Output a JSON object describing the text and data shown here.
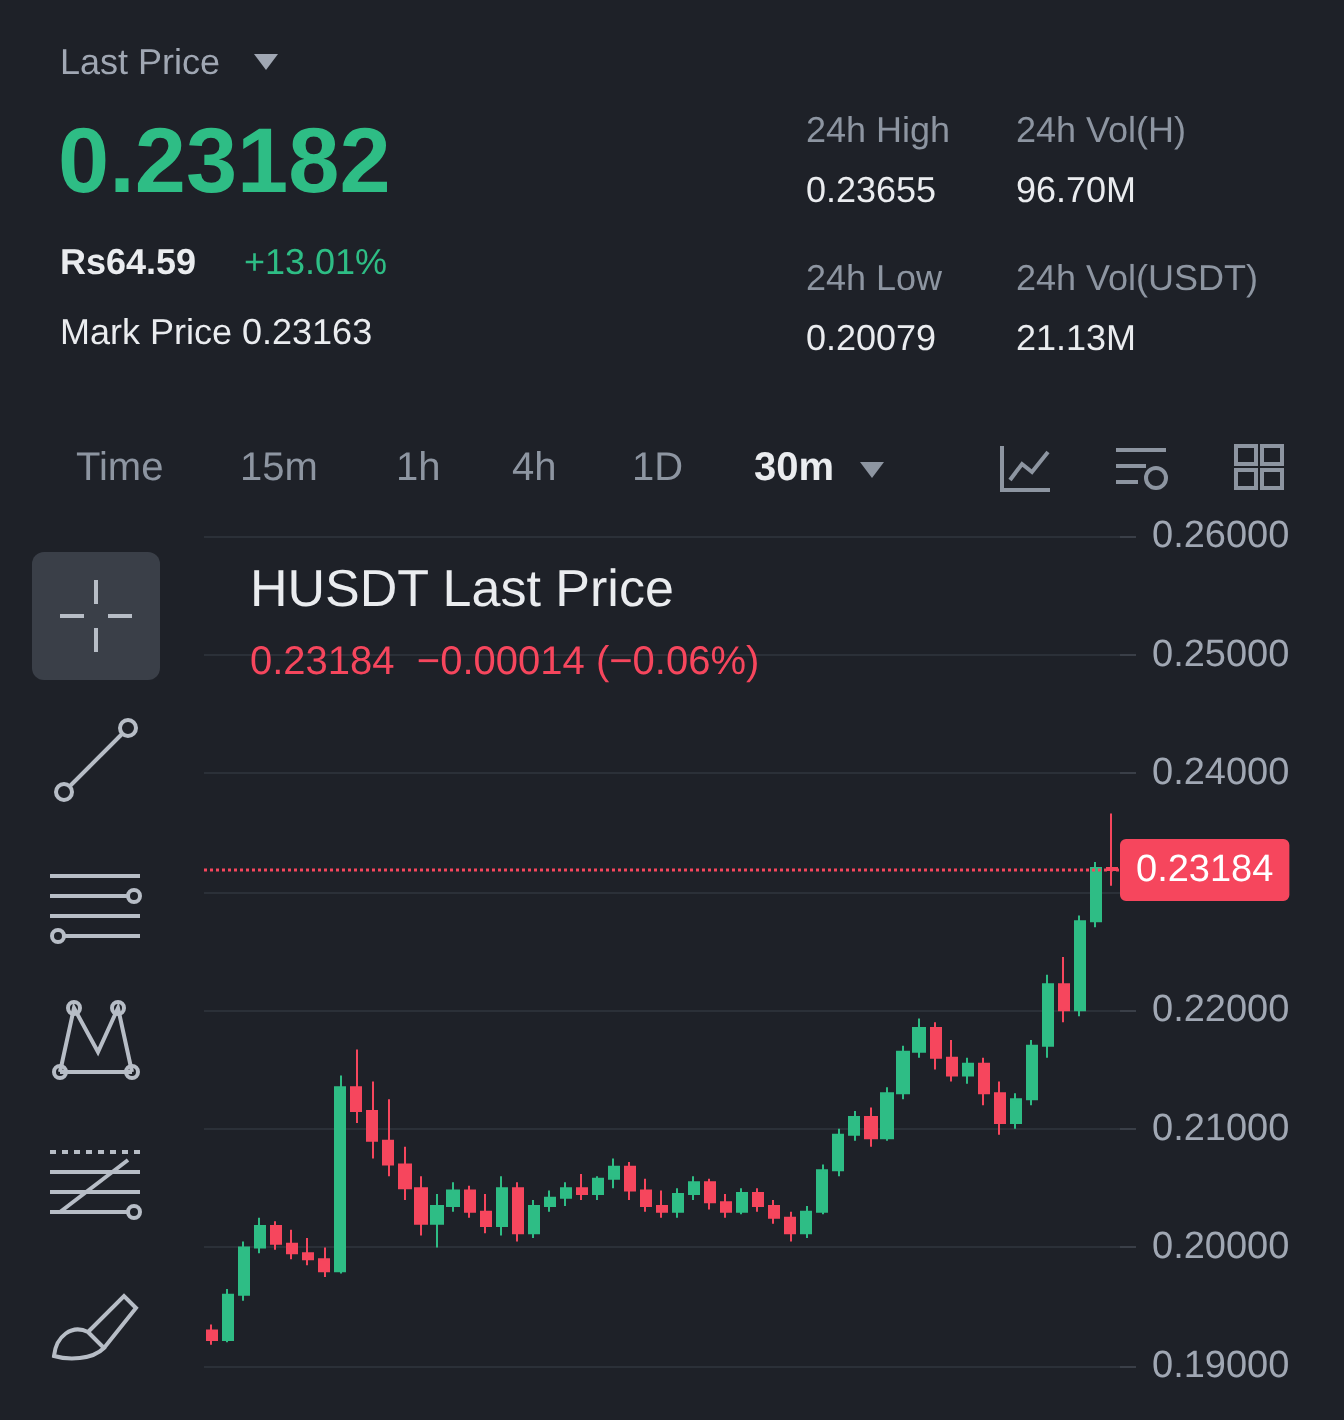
{
  "chart_data": [
    {
      "type": "other",
      "title": "Last Price",
      "annotations": [
        "0.23182",
        "Rs64.59",
        "+13.01%",
        "Mark Price 0.23163",
        "24h High",
        "0.23655",
        "24h Vol(H)",
        "96.70M",
        "24h Low",
        "0.20079",
        "24h Vol(USDT)",
        "21.13M",
        "Time",
        "15m",
        "1h",
        "4h",
        "1D",
        "30m"
      ]
    },
    {
      "type": "candlestick",
      "title": "HUSDT Last Price",
      "subtitle": "0.23184  −0.00014 (−0.06%)",
      "categories": [
        null,
        null,
        null,
        null,
        null,
        null,
        null,
        null,
        null,
        null,
        null,
        null,
        null,
        null,
        null,
        null,
        null,
        null,
        null,
        null,
        null,
        null,
        null,
        null,
        null,
        null,
        null,
        null,
        null,
        null,
        null,
        null,
        null,
        null,
        null,
        null,
        null,
        null,
        null,
        null,
        null,
        null,
        null,
        null,
        null,
        null,
        null,
        null,
        null,
        null,
        null,
        null,
        null,
        null,
        null,
        null,
        null
      ],
      "ohlc": [
        [
          0.193,
          0.1935,
          0.1918,
          0.1922
        ],
        [
          0.1922,
          0.1965,
          0.192,
          0.196
        ],
        [
          0.196,
          0.2005,
          0.1955,
          0.2
        ],
        [
          0.2,
          0.2025,
          0.1995,
          0.2018
        ],
        [
          0.2018,
          0.2022,
          0.1998,
          0.2003
        ],
        [
          0.2003,
          0.2015,
          0.199,
          0.1995
        ],
        [
          0.1995,
          0.2008,
          0.1985,
          0.199
        ],
        [
          0.199,
          0.2,
          0.1975,
          0.198
        ],
        [
          0.198,
          0.2145,
          0.1978,
          0.2135
        ],
        [
          0.2135,
          0.2167,
          0.2105,
          0.2115
        ],
        [
          0.2115,
          0.214,
          0.2075,
          0.209
        ],
        [
          0.209,
          0.2125,
          0.206,
          0.207
        ],
        [
          0.207,
          0.2085,
          0.204,
          0.205
        ],
        [
          0.205,
          0.206,
          0.201,
          0.202
        ],
        [
          0.202,
          0.2045,
          0.2,
          0.2035
        ],
        [
          0.2035,
          0.2055,
          0.203,
          0.2048
        ],
        [
          0.2048,
          0.2052,
          0.2025,
          0.203
        ],
        [
          0.203,
          0.2045,
          0.2012,
          0.2018
        ],
        [
          0.2018,
          0.206,
          0.201,
          0.205
        ],
        [
          0.205,
          0.2055,
          0.2005,
          0.2012
        ],
        [
          0.2012,
          0.204,
          0.2008,
          0.2035
        ],
        [
          0.2035,
          0.2048,
          0.203,
          0.2042
        ],
        [
          0.2042,
          0.2055,
          0.2035,
          0.205
        ],
        [
          0.205,
          0.2062,
          0.204,
          0.2045
        ],
        [
          0.2045,
          0.206,
          0.204,
          0.2058
        ],
        [
          0.2058,
          0.2075,
          0.205,
          0.2068
        ],
        [
          0.2068,
          0.2072,
          0.204,
          0.2048
        ],
        [
          0.2048,
          0.2058,
          0.203,
          0.2035
        ],
        [
          0.2035,
          0.2048,
          0.2025,
          0.203
        ],
        [
          0.203,
          0.205,
          0.2025,
          0.2045
        ],
        [
          0.2045,
          0.206,
          0.204,
          0.2055
        ],
        [
          0.2055,
          0.2058,
          0.2032,
          0.2038
        ],
        [
          0.2038,
          0.2045,
          0.2025,
          0.203
        ],
        [
          0.203,
          0.205,
          0.2028,
          0.2046
        ],
        [
          0.2046,
          0.205,
          0.203,
          0.2035
        ],
        [
          0.2035,
          0.204,
          0.202,
          0.2025
        ],
        [
          0.2025,
          0.203,
          0.2005,
          0.2012
        ],
        [
          0.2012,
          0.2035,
          0.2008,
          0.203
        ],
        [
          0.203,
          0.207,
          0.2028,
          0.2065
        ],
        [
          0.2065,
          0.21,
          0.206,
          0.2095
        ],
        [
          0.2095,
          0.2115,
          0.209,
          0.211
        ],
        [
          0.211,
          0.2118,
          0.2085,
          0.2092
        ],
        [
          0.2092,
          0.2135,
          0.209,
          0.213
        ],
        [
          0.213,
          0.217,
          0.2125,
          0.2165
        ],
        [
          0.2165,
          0.2193,
          0.216,
          0.2185
        ],
        [
          0.2185,
          0.219,
          0.215,
          0.216
        ],
        [
          0.216,
          0.2175,
          0.214,
          0.2145
        ],
        [
          0.2145,
          0.216,
          0.2138,
          0.2155
        ],
        [
          0.2155,
          0.216,
          0.212,
          0.213
        ],
        [
          0.213,
          0.214,
          0.2095,
          0.2105
        ],
        [
          0.2105,
          0.213,
          0.21,
          0.2125
        ],
        [
          0.2125,
          0.2175,
          0.212,
          0.217
        ],
        [
          0.217,
          0.223,
          0.216,
          0.2222
        ],
        [
          0.2222,
          0.2245,
          0.219,
          0.22
        ],
        [
          0.22,
          0.228,
          0.2195,
          0.2275
        ],
        [
          0.2275,
          0.2325,
          0.227,
          0.232
        ],
        [
          0.232,
          0.2366,
          0.2305,
          0.23184
        ]
      ],
      "ylim": [
        0.19,
        0.26
      ],
      "yticks": [
        {
          "value": 0.19,
          "label": "0.19000"
        },
        {
          "value": 0.2,
          "label": "0.20000"
        },
        {
          "value": 0.21,
          "label": "0.21000"
        },
        {
          "value": 0.22,
          "label": "0.22000"
        },
        {
          "value": 0.23,
          "label": null
        },
        {
          "value": 0.24,
          "label": "0.24000"
        },
        {
          "value": 0.25,
          "label": "0.25000"
        },
        {
          "value": 0.26,
          "label": "0.26000"
        }
      ],
      "ref_lines": [
        {
          "axis": "y",
          "value": 0.23184,
          "label": "0.23184",
          "color": "#f6465d",
          "line_style": "dotted"
        }
      ],
      "grid": "y",
      "tick_labels": "y"
    }
  ]
}
